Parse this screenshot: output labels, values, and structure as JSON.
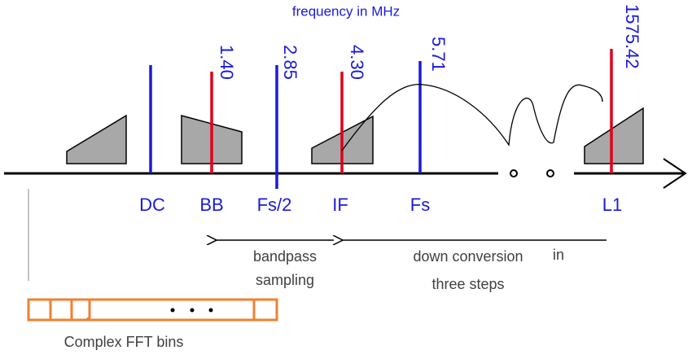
{
  "title": "frequency in MHz",
  "frequencies": [
    "1.40",
    "2.85",
    "4.30",
    "5.71",
    "1575.42"
  ],
  "markers": [
    "DC",
    "BB",
    "Fs/2",
    "IF",
    "Fs",
    "L1"
  ],
  "bandpass": [
    "bandpass",
    "sampling"
  ],
  "down_conversion": [
    "down conversion",
    "in",
    "three steps"
  ],
  "fft_label": "Complex FFT bins"
}
